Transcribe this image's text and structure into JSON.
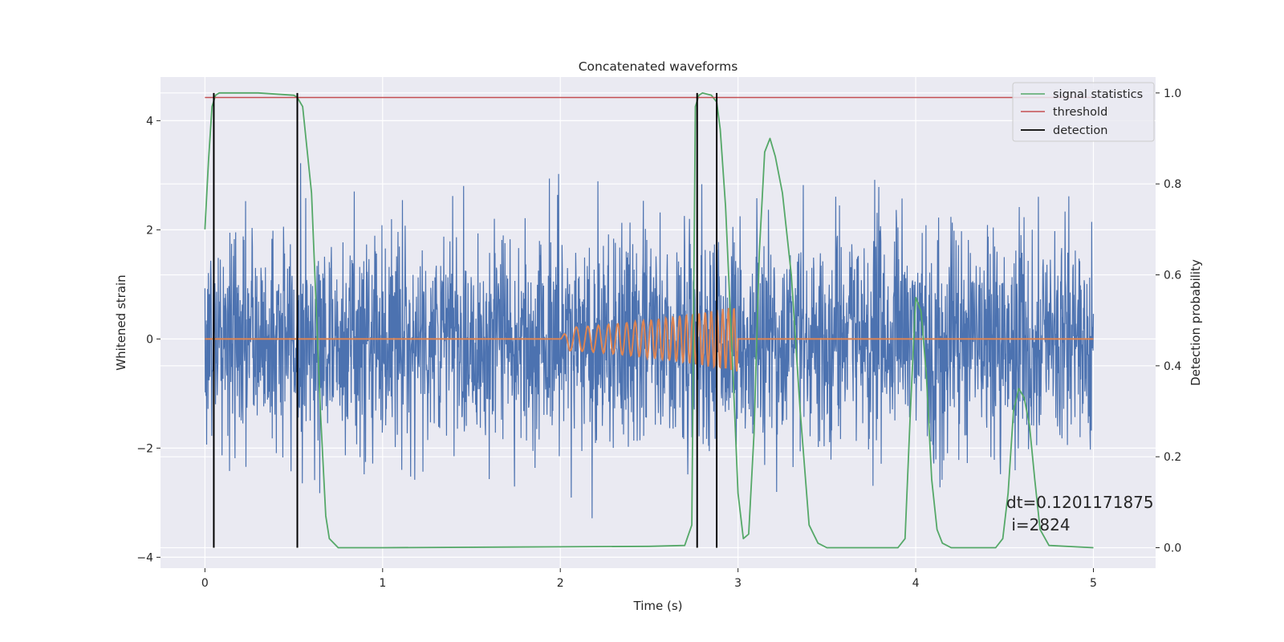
{
  "chart_data": {
    "type": "line",
    "title": "Concatenated waveforms",
    "xlabel": "Time (s)",
    "ylabel": "Whitened strain",
    "y2label": "Detection probability",
    "xlim": [
      -0.25,
      5.35
    ],
    "ylim": [
      -4.2,
      4.8
    ],
    "y2lim": [
      -0.045,
      1.035
    ],
    "xticks": [
      0,
      1,
      2,
      3,
      4,
      5
    ],
    "yticks": [
      -4,
      -2,
      0,
      2,
      4
    ],
    "y2ticks": [
      0.0,
      0.2,
      0.4,
      0.6,
      0.8,
      1.0
    ],
    "xtick_labels": [
      "0",
      "1",
      "2",
      "3",
      "4",
      "5"
    ],
    "ytick_labels": [
      "−4",
      "−2",
      "0",
      "2",
      "4"
    ],
    "y2tick_labels": [
      "0.0",
      "0.2",
      "0.4",
      "0.6",
      "0.8",
      "1.0"
    ],
    "grid": true,
    "legend_placement": "top-right",
    "colors": {
      "background": "#eaeaf2",
      "grid": "#ffffff",
      "strain": "#4c72b0",
      "injection": "#dd8452",
      "statistic": "#55a868",
      "threshold": "#c44e52",
      "detection": "#000000"
    },
    "series": [
      {
        "name": "",
        "axis": "left",
        "kind": "noise",
        "x_range": [
          0,
          5
        ],
        "typical_amplitude": 1.0,
        "extreme_range": [
          -3.8,
          4.4
        ]
      },
      {
        "name": "",
        "axis": "left",
        "kind": "chirp",
        "x_range": [
          0,
          5
        ],
        "chirp_start": 2.0,
        "chirp_end": 3.0,
        "peak_amplitude": 0.6
      },
      {
        "name": "signal statistics",
        "axis": "right",
        "x": [
          0,
          0.02,
          0.04,
          0.06,
          0.08,
          0.1,
          0.3,
          0.5,
          0.52,
          0.55,
          0.6,
          0.65,
          0.68,
          0.7,
          0.75,
          1.0,
          2.0,
          2.5,
          2.7,
          2.74,
          2.76,
          2.78,
          2.8,
          2.85,
          2.88,
          2.9,
          2.93,
          2.97,
          3.0,
          3.03,
          3.06,
          3.09,
          3.12,
          3.15,
          3.18,
          3.21,
          3.25,
          3.3,
          3.35,
          3.4,
          3.45,
          3.5,
          3.9,
          3.94,
          3.97,
          4.0,
          4.03,
          4.06,
          4.09,
          4.12,
          4.15,
          4.2,
          4.45,
          4.49,
          4.52,
          4.55,
          4.58,
          4.61,
          4.64,
          4.67,
          4.7,
          4.75,
          5.0
        ],
        "y": [
          0.7,
          0.85,
          0.97,
          0.995,
          1.0,
          1.0,
          1.0,
          0.995,
          0.99,
          0.97,
          0.78,
          0.3,
          0.07,
          0.02,
          0.0,
          0.0,
          0.002,
          0.003,
          0.005,
          0.05,
          0.97,
          0.995,
          1.0,
          0.995,
          0.98,
          0.92,
          0.75,
          0.4,
          0.12,
          0.02,
          0.03,
          0.25,
          0.65,
          0.87,
          0.9,
          0.86,
          0.78,
          0.6,
          0.3,
          0.05,
          0.01,
          0.0,
          0.0,
          0.02,
          0.3,
          0.55,
          0.52,
          0.38,
          0.15,
          0.04,
          0.01,
          0.0,
          0.0,
          0.02,
          0.12,
          0.3,
          0.35,
          0.33,
          0.27,
          0.15,
          0.04,
          0.005,
          0.0
        ]
      },
      {
        "name": "threshold",
        "axis": "right",
        "x": [
          0,
          5
        ],
        "y": [
          0.99,
          0.99
        ]
      },
      {
        "name": "detection",
        "axis": "right",
        "x_positions": [
          0.05,
          0.52,
          2.77,
          2.88
        ],
        "y_range": [
          0,
          1
        ]
      }
    ],
    "annotation": {
      "line1": "dt=0.1201171875",
      "line2": " i=2824",
      "x": 4.51,
      "y2": 0.1
    }
  }
}
